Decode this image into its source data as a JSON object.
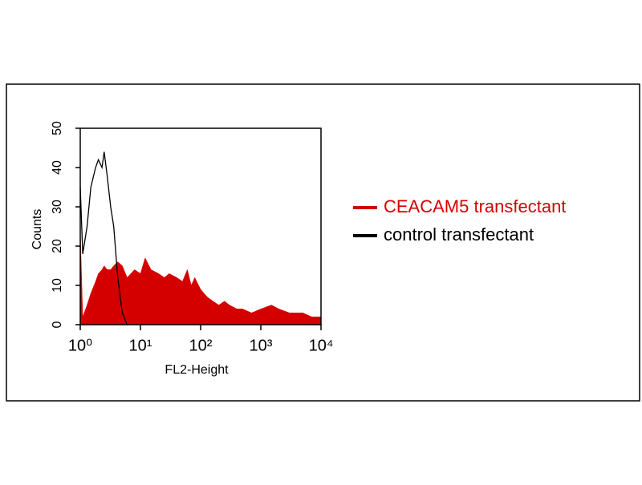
{
  "chart_data": {
    "type": "histogram-overlay",
    "x_label": "FL2-Height",
    "y_label": "Counts",
    "log_x": true,
    "xlim": [
      1,
      10000
    ],
    "xticks": [
      {
        "value": 1,
        "label": "10⁰"
      },
      {
        "value": 10,
        "label": "10¹"
      },
      {
        "value": 100,
        "label": "10²"
      },
      {
        "value": 1000,
        "label": "10³"
      },
      {
        "value": 10000,
        "label": "10⁴"
      }
    ],
    "ylim": [
      0,
      50
    ],
    "yticks": [
      0,
      10,
      20,
      30,
      40,
      50
    ],
    "legend": "right",
    "x": [
      1,
      1.1,
      1.3,
      1.5,
      1.8,
      2,
      2.3,
      2.5,
      2.8,
      3.2,
      3.6,
      4.2,
      5,
      6,
      8,
      10,
      12,
      15,
      20,
      25,
      30,
      40,
      50,
      60,
      70,
      80,
      100,
      130,
      160,
      200,
      250,
      300,
      400,
      500,
      700,
      1000,
      1500,
      2000,
      3000,
      5000,
      7000,
      10000
    ],
    "series": [
      {
        "name": "CEACAM5 transfectant",
        "color": "#d40000",
        "fill": true,
        "values": [
          24,
          2,
          5,
          8,
          11,
          13,
          14,
          15,
          14,
          14,
          15,
          16,
          15,
          12,
          14,
          13,
          17,
          14,
          13,
          12,
          13,
          12,
          11,
          14,
          10,
          12,
          9,
          7,
          6,
          5,
          6,
          5,
          4,
          4,
          3,
          4,
          5,
          4,
          3,
          3,
          2,
          2
        ]
      },
      {
        "name": "control transfectant",
        "color": "#000000",
        "fill": false,
        "values": [
          35,
          18,
          25,
          35,
          40,
          42,
          40,
          44,
          38,
          30,
          25,
          12,
          3,
          0,
          null,
          null,
          null,
          null,
          null,
          null,
          null,
          null,
          null,
          null,
          null,
          null,
          null,
          null,
          null,
          null,
          null,
          null,
          null,
          null,
          null,
          null,
          null,
          null,
          null,
          null,
          null,
          null
        ]
      }
    ]
  }
}
